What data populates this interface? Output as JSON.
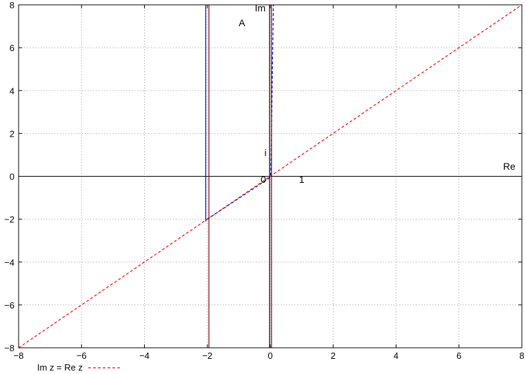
{
  "chart_data": {
    "type": "line",
    "title": "",
    "xlabel": "",
    "ylabel": "",
    "xlim": [
      -8,
      8
    ],
    "ylim": [
      -8,
      8
    ],
    "grid": true,
    "legend_position": "bottom-left",
    "x_ticks": [
      -8,
      -6,
      -4,
      -2,
      0,
      2,
      4,
      6,
      8
    ],
    "y_ticks": [
      -8,
      -6,
      -4,
      -2,
      0,
      2,
      4,
      6,
      8
    ],
    "x_tick_labels": [
      "−8",
      "−6",
      "−4",
      "−2",
      "0",
      "2",
      "4",
      "6",
      "8"
    ],
    "y_tick_labels": [
      "−8",
      "−6",
      "−4",
      "−2",
      "0",
      "2",
      "4",
      "6",
      "8"
    ],
    "annotations": [
      {
        "text": "Im",
        "x": -0.32,
        "y": 7.7
      },
      {
        "text": "A",
        "x": -0.9,
        "y": 7.0
      },
      {
        "text": "i",
        "x": -0.15,
        "y": 0.95
      },
      {
        "text": "0",
        "x": -0.22,
        "y": -0.3
      },
      {
        "text": "1",
        "x": 1.0,
        "y": -0.3
      },
      {
        "text": "Re",
        "x": 7.6,
        "y": 0.3
      }
    ],
    "series": [
      {
        "name": "Im z = Re z",
        "color": "#ff0000",
        "dash": "dashed",
        "points": [
          [
            -8,
            -8
          ],
          [
            8,
            8
          ]
        ]
      },
      {
        "color": "#0000cc",
        "dash": "solid",
        "points": [
          [
            -2.05,
            8
          ],
          [
            -2.05,
            -2.1
          ]
        ]
      },
      {
        "color": "#800000",
        "dash": "solid",
        "points": [
          [
            -1.95,
            8
          ],
          [
            -1.95,
            -8
          ]
        ]
      },
      {
        "color": "#0000cc",
        "dash": "dashed",
        "points": [
          [
            -2.0,
            -2.0
          ],
          [
            -0.05,
            -0.1
          ],
          [
            0.02,
            0.1
          ],
          [
            0.1,
            8
          ]
        ]
      },
      {
        "color": "#000000",
        "dash": "solid",
        "points": [
          [
            -0.02,
            8
          ],
          [
            -0.02,
            -8
          ]
        ]
      },
      {
        "color": "#800000",
        "dash": "solid",
        "points": [
          [
            0.04,
            8
          ],
          [
            0.04,
            -8
          ]
        ]
      }
    ]
  }
}
